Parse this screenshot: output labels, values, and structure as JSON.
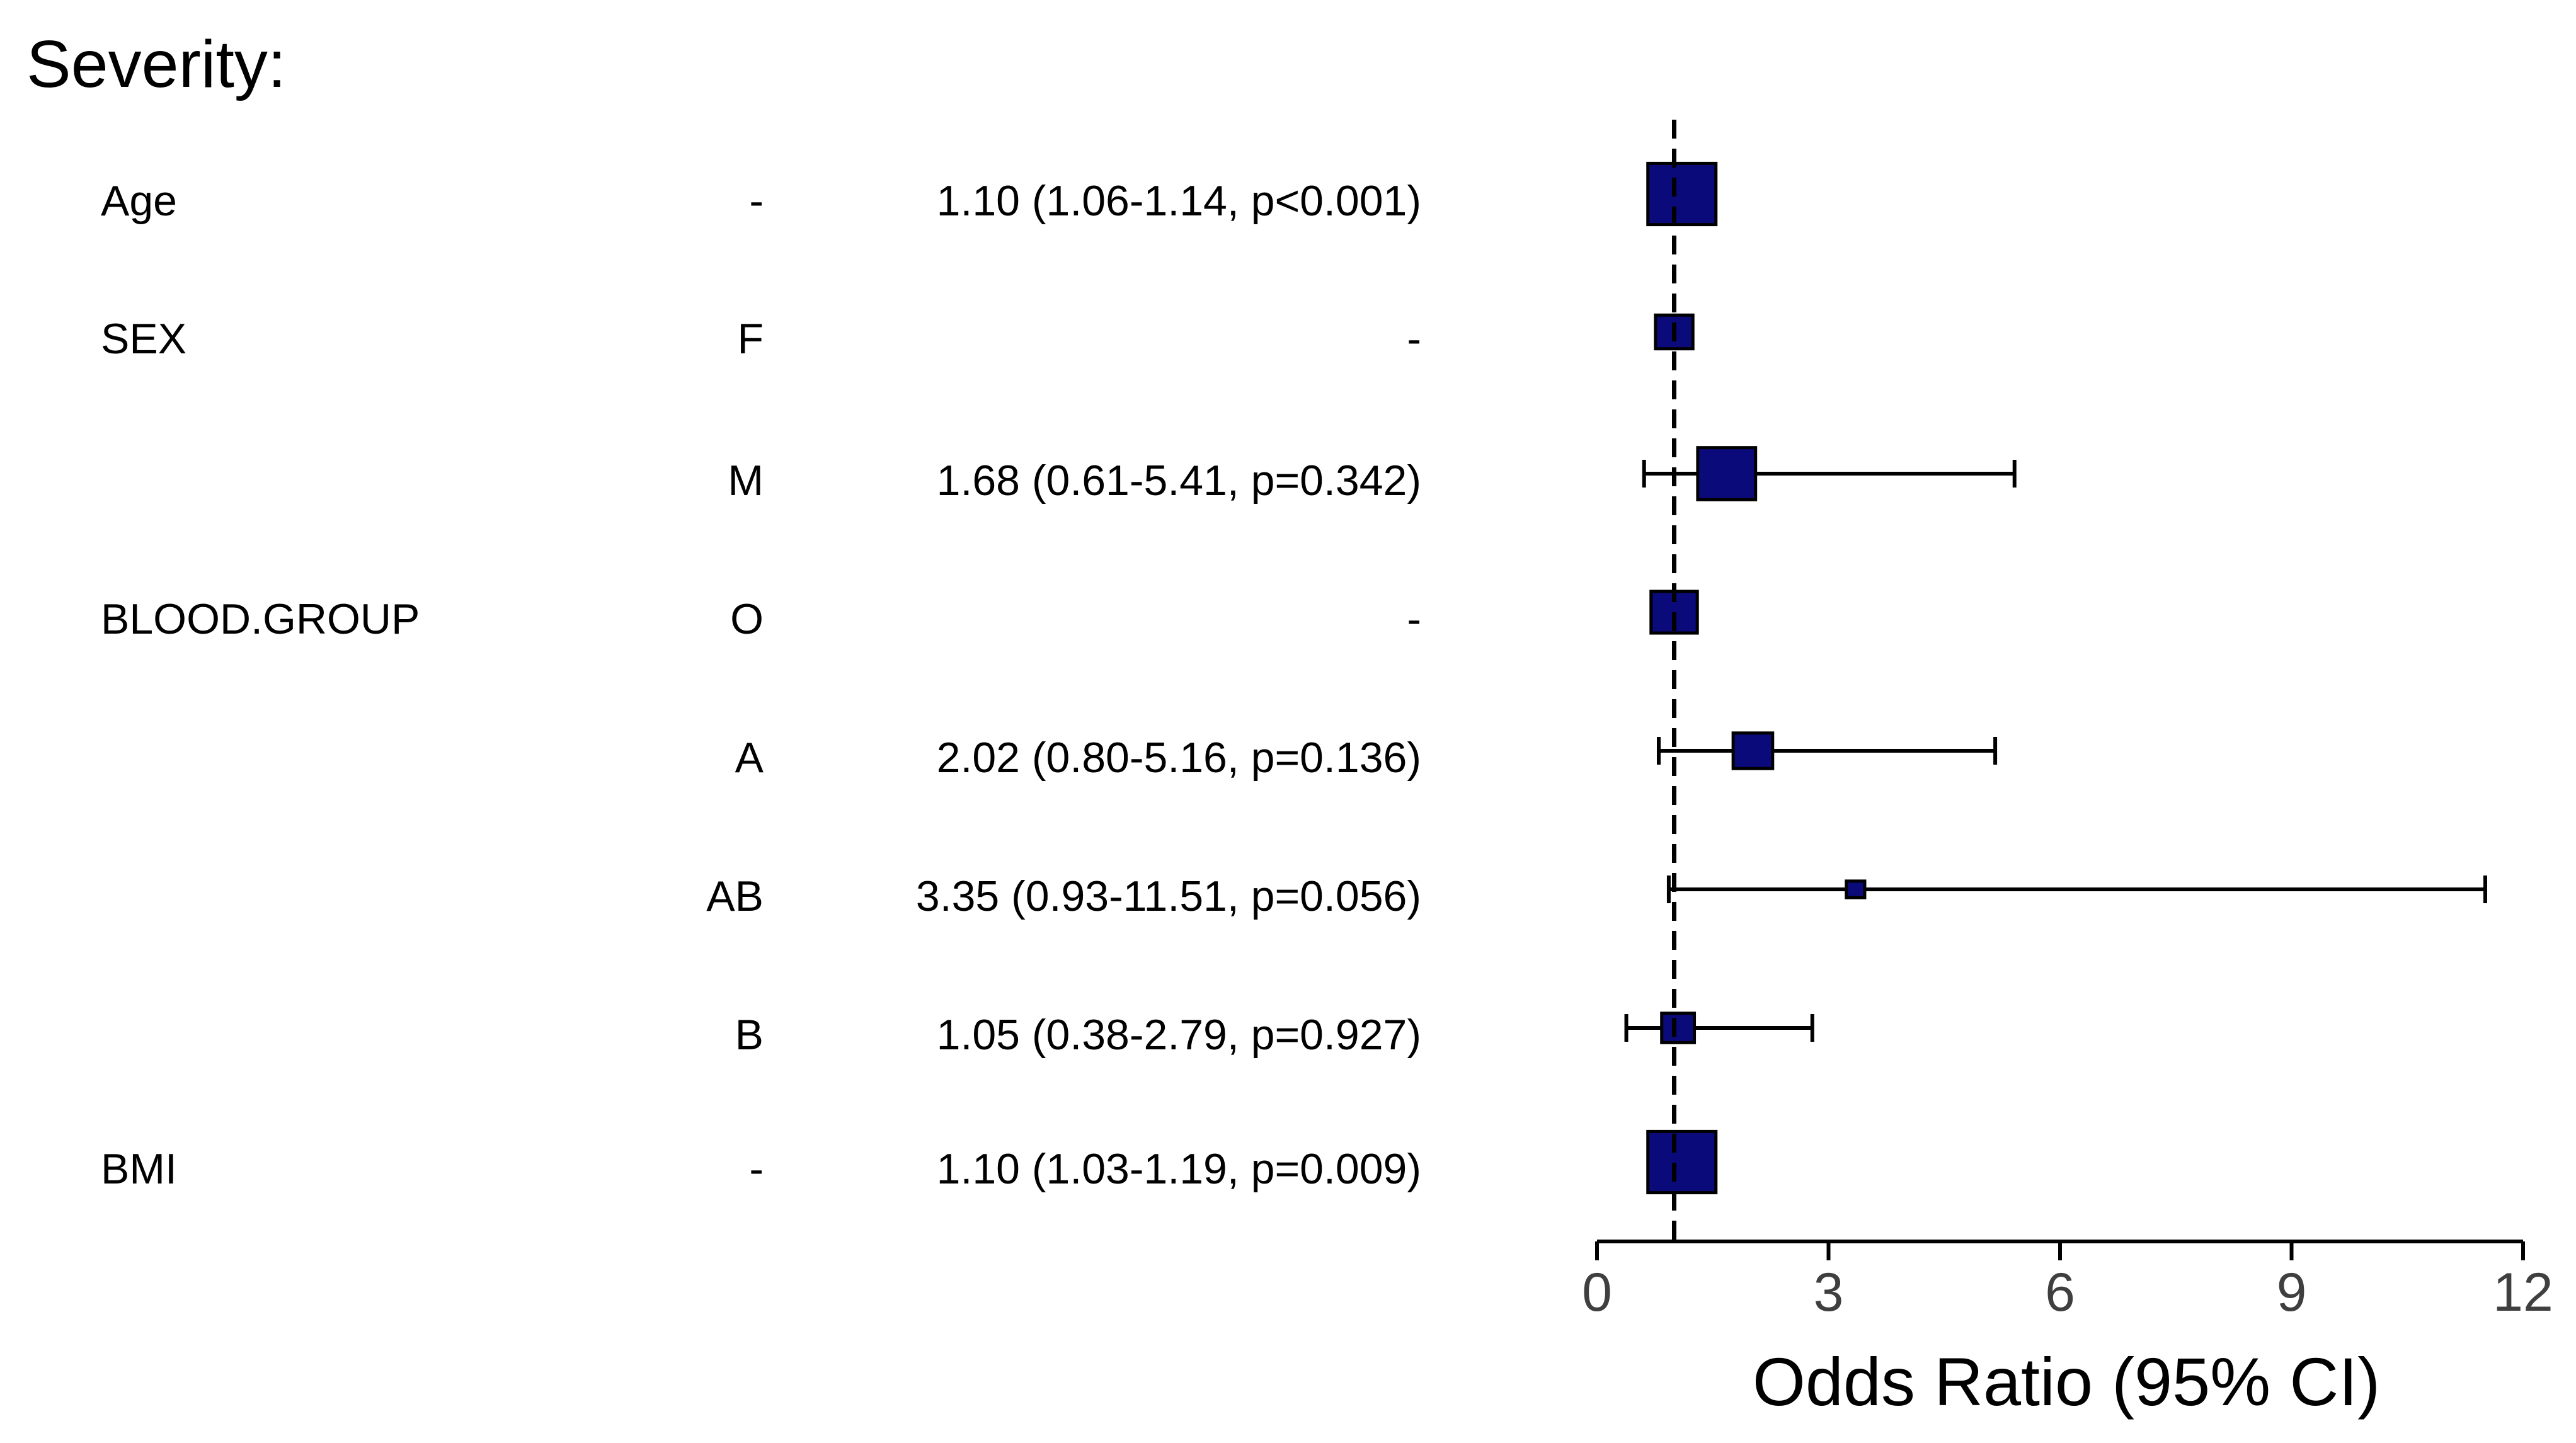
{
  "chart_data": {
    "type": "forest",
    "title": "Severity:",
    "xlabel": "Odds Ratio (95% CI)",
    "xlim": [
      0,
      12
    ],
    "xticks": [
      0,
      3,
      6,
      9,
      12
    ],
    "reference_line": 1,
    "colors": {
      "box_fill": "#0a0a7a",
      "box_stroke": "#000000",
      "line": "#000000",
      "tick_text": "#3f3f3f"
    },
    "rows": [
      {
        "variable": "Age",
        "level": "-",
        "estimate_label": "1.10 (1.06-1.14, p<0.001)",
        "or": 1.1,
        "lo": 1.06,
        "hi": 1.14,
        "box_scale": 1.0
      },
      {
        "variable": "SEX",
        "level": "F",
        "estimate_label": "-",
        "or": 1.0,
        "lo": null,
        "hi": null,
        "box_scale": 0.55
      },
      {
        "variable": "",
        "level": "M",
        "estimate_label": "1.68 (0.61-5.41, p=0.342)",
        "or": 1.68,
        "lo": 0.61,
        "hi": 5.41,
        "box_scale": 0.85
      },
      {
        "variable": "BLOOD.GROUP",
        "level": "O",
        "estimate_label": "-",
        "or": 1.0,
        "lo": null,
        "hi": null,
        "box_scale": 0.68
      },
      {
        "variable": "",
        "level": "A",
        "estimate_label": "2.02 (0.80-5.16, p=0.136)",
        "or": 2.02,
        "lo": 0.8,
        "hi": 5.16,
        "box_scale": 0.58
      },
      {
        "variable": "",
        "level": "AB",
        "estimate_label": "3.35 (0.93-11.51, p=0.056)",
        "or": 3.35,
        "lo": 0.93,
        "hi": 11.51,
        "box_scale": 0.27
      },
      {
        "variable": "",
        "level": "B",
        "estimate_label": "1.05 (0.38-2.79, p=0.927)",
        "or": 1.05,
        "lo": 0.38,
        "hi": 2.79,
        "box_scale": 0.48
      },
      {
        "variable": "BMI",
        "level": "-",
        "estimate_label": "1.10 (1.03-1.19, p=0.009)",
        "or": 1.1,
        "lo": 1.03,
        "hi": 1.19,
        "box_scale": 1.0
      }
    ]
  }
}
